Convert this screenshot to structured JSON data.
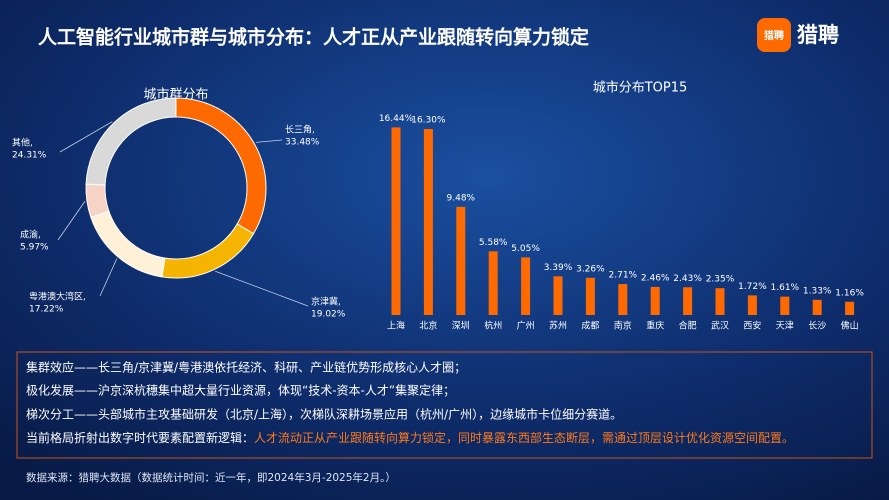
{
  "header": {
    "title": "人工智能行业城市群与城市分布：人才正从产业跟随转向算力锁定"
  },
  "logo": {
    "icon_text": "猎聘",
    "name": "猎聘"
  },
  "chart_data": [
    {
      "type": "donut",
      "title": "城市群分布",
      "categories": [
        "长三角,",
        "京津冀,",
        "粤港澳大湾区,",
        "成渝,",
        "其他,"
      ],
      "values": [
        33.48,
        19.02,
        17.22,
        5.97,
        24.31
      ],
      "value_labels": [
        "33.48%",
        "19.02%",
        "17.22%",
        "5.97%",
        "24.31%"
      ],
      "colors": [
        "#ff6a00",
        "#f5b400",
        "#fff1d8",
        "#f7d3c5",
        "#d9d9d9"
      ]
    },
    {
      "type": "bar",
      "title": "城市分布TOP15",
      "categories": [
        "上海",
        "北京",
        "深圳",
        "杭州",
        "广州",
        "苏州",
        "成都",
        "南京",
        "重庆",
        "合肥",
        "武汉",
        "西安",
        "天津",
        "长沙",
        "佛山"
      ],
      "values": [
        16.44,
        16.3,
        9.48,
        5.58,
        5.05,
        3.39,
        3.26,
        2.71,
        2.46,
        2.43,
        2.35,
        1.72,
        1.61,
        1.33,
        1.16
      ],
      "value_labels": [
        "16.44%",
        "16.30%",
        "9.48%",
        "5.58%",
        "5.05%",
        "3.39%",
        "3.26%",
        "2.71%",
        "2.46%",
        "2.43%",
        "2.35%",
        "1.72%",
        "1.61%",
        "1.33%",
        "1.16%"
      ],
      "color": "#ff6a00",
      "ylim": [
        0,
        17
      ]
    }
  ],
  "notes": {
    "lines": [
      "集群效应——长三角/京津冀/粤港澳依托经济、科研、产业链优势形成核心人才圈；",
      "极化发展——沪京深杭穗集中超大量行业资源，体现“技术-资本-人才”集聚定律；",
      "梯次分工——头部城市主攻基础研发（北京/上海），次梯队深耕场景应用（杭州/广州），边缘城市卡位细分赛道。"
    ],
    "conclusion_lead": "当前格局折射出数字时代要素配置新逻辑：",
    "conclusion": "人才流动正从产业跟随转向算力锁定，同时暴露东西部生态断层，需通过顶层设计优化资源空间配置。"
  },
  "source": "数据来源：猎聘大数据（数据统计时间：近一年，即2024年3月-2025年2月。）"
}
